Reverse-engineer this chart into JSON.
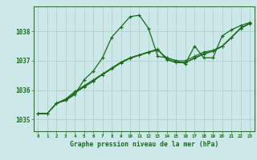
{
  "title": "Graphe pression niveau de la mer (hPa)",
  "background_color": "#cce8e8",
  "grid_color": "#aacccc",
  "line_color": "#1a6b1a",
  "xlim": [
    -0.5,
    23.5
  ],
  "ylim": [
    1034.6,
    1038.85
  ],
  "yticks": [
    1035,
    1036,
    1037,
    1038
  ],
  "xticks": [
    0,
    1,
    2,
    3,
    4,
    5,
    6,
    7,
    8,
    9,
    10,
    11,
    12,
    13,
    14,
    15,
    16,
    17,
    18,
    19,
    20,
    21,
    22,
    23
  ],
  "series": [
    [
      1035.2,
      1035.2,
      1035.55,
      1035.65,
      1035.85,
      1036.35,
      1036.65,
      1037.1,
      1037.8,
      1038.15,
      1038.5,
      1038.55,
      1038.1,
      1037.15,
      1037.1,
      1037.0,
      1036.9,
      1037.5,
      1037.1,
      1037.1,
      1037.85,
      1038.05,
      1038.2,
      1038.3
    ],
    [
      1035.2,
      1035.2,
      1035.55,
      1035.65,
      1035.9,
      1036.1,
      1036.3,
      1036.55,
      1036.75,
      1036.95,
      1037.1,
      1037.2,
      1037.3,
      1037.35,
      1037.1,
      1037.0,
      1037.0,
      1037.15,
      1037.3,
      1037.35,
      1037.5,
      1037.8,
      1038.1,
      1038.28
    ],
    [
      1035.2,
      1035.2,
      1035.55,
      1035.7,
      1035.95,
      1036.15,
      1036.35,
      1036.55,
      1036.75,
      1036.95,
      1037.1,
      1037.2,
      1037.3,
      1037.4,
      1037.05,
      1036.95,
      1036.95,
      1037.1,
      1037.25,
      1037.35,
      1037.5,
      1037.8,
      1038.12,
      1038.28
    ],
    [
      1035.2,
      1035.2,
      1035.55,
      1035.68,
      1035.92,
      1036.12,
      1036.32,
      1036.52,
      1036.72,
      1036.92,
      1037.08,
      1037.18,
      1037.28,
      1037.38,
      1037.03,
      1036.93,
      1036.93,
      1037.08,
      1037.22,
      1037.32,
      1037.48,
      1037.78,
      1038.1,
      1038.26
    ]
  ]
}
